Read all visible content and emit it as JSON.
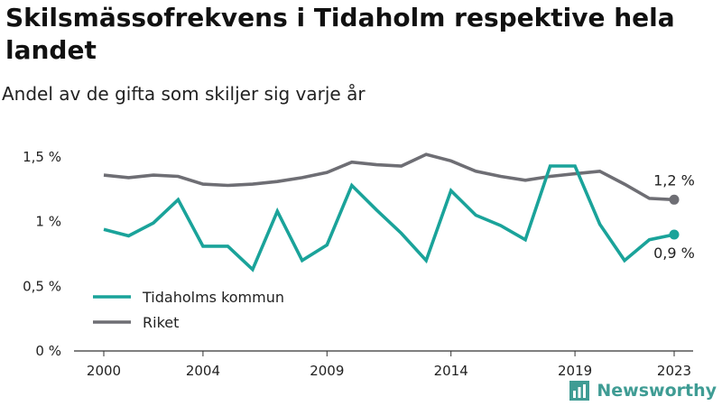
{
  "title": "Skilsmässofrekvens i Tidaholm respektive hela landet",
  "subtitle": "Andel av de gifta som skiljer sig varje år",
  "brand": "Newsworthy",
  "brand_icon": "bar-chart-icon",
  "colors": {
    "tidaholm": "#1aa39a",
    "riket": "#6e6e74",
    "axis": "#333333"
  },
  "chart_data": {
    "type": "line",
    "title": "Skilsmässofrekvens i Tidaholm respektive hela landet",
    "subtitle": "Andel av de gifta som skiljer sig varje år",
    "xlabel": "",
    "ylabel": "",
    "x": [
      2000,
      2001,
      2002,
      2003,
      2004,
      2005,
      2006,
      2007,
      2008,
      2009,
      2010,
      2011,
      2012,
      2013,
      2014,
      2015,
      2016,
      2017,
      2018,
      2019,
      2020,
      2021,
      2022,
      2023
    ],
    "x_ticks": [
      2000,
      2004,
      2009,
      2014,
      2019,
      2023
    ],
    "x_tick_labels": [
      "2000",
      "2004",
      "2009",
      "2014",
      "2019",
      "2023"
    ],
    "ylim": [
      0,
      1.5
    ],
    "y_ticks": [
      0,
      0.5,
      1,
      1.5
    ],
    "y_tick_labels": [
      "0 %",
      "0,5 %",
      "1 %",
      "1,5 %"
    ],
    "grid": false,
    "legend_position": "bottom-left",
    "series": [
      {
        "name": "Tidaholms kommun",
        "color": "#1aa39a",
        "values": [
          0.94,
          0.89,
          0.99,
          1.17,
          0.81,
          0.81,
          0.63,
          1.08,
          0.7,
          0.82,
          1.28,
          1.09,
          0.91,
          0.7,
          1.24,
          1.05,
          0.97,
          0.86,
          1.43,
          1.43,
          0.98,
          0.7,
          0.86,
          0.9
        ],
        "end_label": "0,9 %"
      },
      {
        "name": "Riket",
        "color": "#6e6e74",
        "values": [
          1.36,
          1.34,
          1.36,
          1.35,
          1.29,
          1.28,
          1.29,
          1.31,
          1.34,
          1.38,
          1.46,
          1.44,
          1.43,
          1.52,
          1.47,
          1.39,
          1.35,
          1.32,
          1.35,
          1.37,
          1.39,
          1.29,
          1.18,
          1.17
        ],
        "end_label": "1,2 %"
      }
    ]
  }
}
